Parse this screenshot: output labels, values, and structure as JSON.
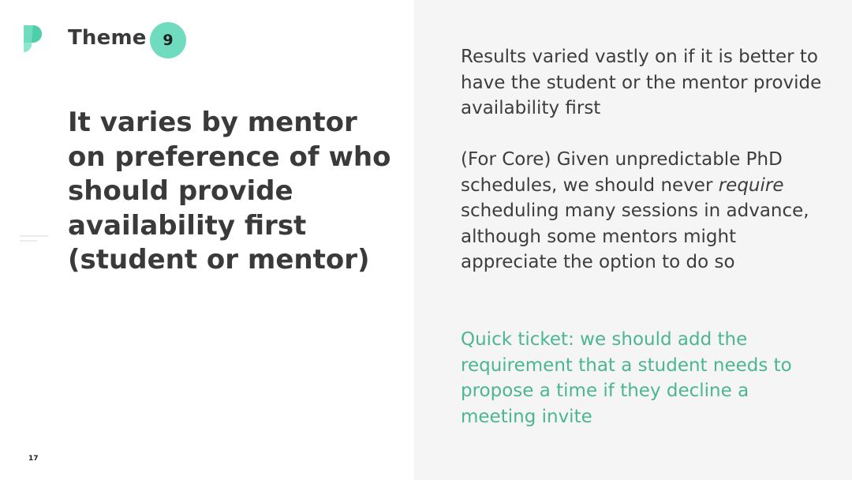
{
  "slide": {
    "theme_label": "Theme",
    "theme_number": "9",
    "headline": "It varies by mentor on preference of who should provide availability first (student or mentor)",
    "page_number": "17",
    "paragraphs": {
      "p1": "Results varied vastly on if it is better to have the student or the mentor provide availability first",
      "p2_before": "(For Core) Given unpredictable PhD schedules, we should never",
      "p2_emphasis": "require",
      "p2_after": "scheduling many sessions in advance, although some mentors might appreciate the option to do so",
      "p3": "Quick ticket: we should add the requirement that a student needs to propose a time if they decline a meeting invite"
    }
  },
  "colors": {
    "accent": "#6fdcc0",
    "highlight_text": "#4cb594",
    "right_pane_bg": "#f5f5f5",
    "text": "#3a3a3a"
  },
  "icons": {
    "logo": "brand-logo-icon"
  }
}
